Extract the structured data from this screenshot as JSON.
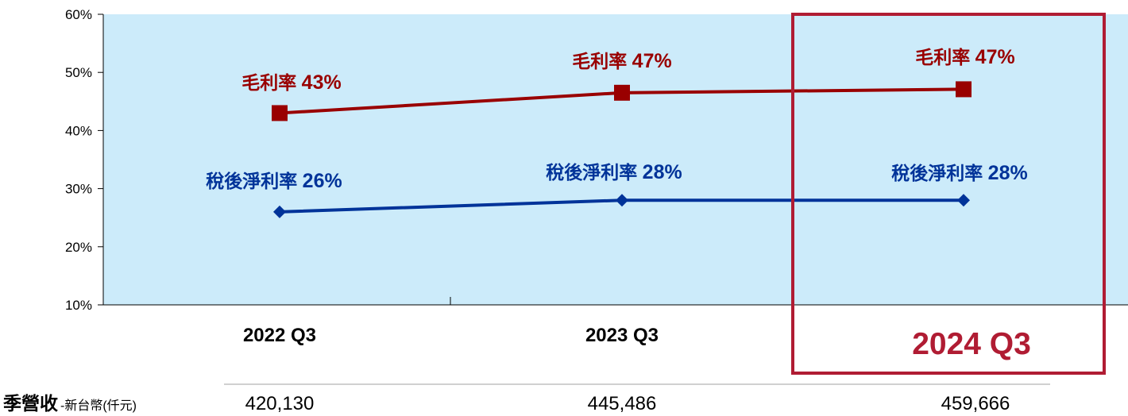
{
  "chart_data": {
    "type": "line",
    "categories": [
      "2022 Q3",
      "2023 Q3",
      "2024 Q3"
    ],
    "series": [
      {
        "key": "gross",
        "color": "#990000",
        "marker": "square",
        "values": [
          43,
          46.5,
          47.1
        ],
        "labels": [
          {
            "name": "毛利率",
            "value": "43%"
          },
          {
            "name": "毛利率",
            "value": "47%"
          },
          {
            "name": "毛利率",
            "value": "47%"
          }
        ]
      },
      {
        "key": "net",
        "color": "#003399",
        "marker": "diamond",
        "values": [
          26,
          28,
          28
        ],
        "labels": [
          {
            "name": "稅後淨利率",
            "value": "26%"
          },
          {
            "name": "稅後淨利率",
            "value": "28%"
          },
          {
            "name": "稅後淨利率",
            "value": "28%"
          }
        ]
      }
    ],
    "y_ticks": [
      "60%",
      "50%",
      "40%",
      "30%",
      "20%",
      "10%"
    ],
    "ylim": [
      10,
      60
    ],
    "y_unit": "%",
    "highlight": {
      "category": "2024 Q3",
      "color": "#B01C33"
    },
    "plot_background": "#CCEBFA"
  },
  "revenue_row": {
    "title": "季營收",
    "unit_note": "-新台幣(仟元)",
    "values": [
      "420,130",
      "445,486",
      "459,666"
    ]
  }
}
